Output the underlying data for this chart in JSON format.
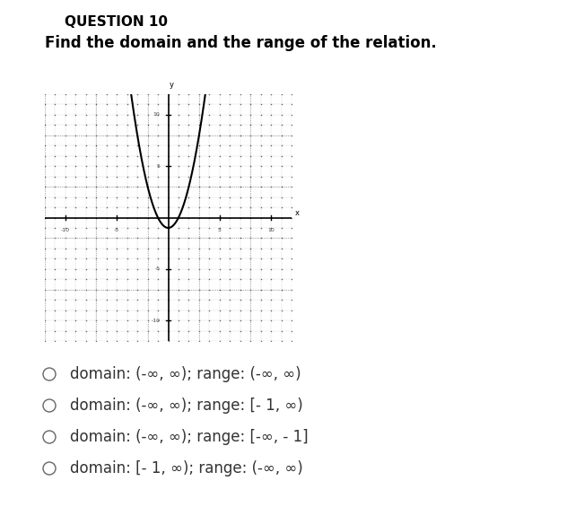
{
  "title": "QUESTION 10",
  "subtitle": "Find the domain and the range of the relation.",
  "graph_xlim": [
    -12,
    12
  ],
  "graph_ylim": [
    -12,
    12
  ],
  "graph_xticks": [
    -10,
    -5,
    5,
    10
  ],
  "graph_yticks": [
    -10,
    -5,
    5,
    10
  ],
  "curve_color": "#000000",
  "axis_color": "#000000",
  "background_color": "#ffffff",
  "options": [
    "domain: (-∞, ∞); range: (-∞, ∞)",
    "domain: (-∞, ∞); range: [- 1, ∞)",
    "domain: (-∞, ∞); range: [-∞, - 1]",
    "domain: [- 1, ∞); range: (-∞, ∞)"
  ],
  "option_fontsize": 12,
  "title_fontsize": 11,
  "subtitle_fontsize": 12
}
